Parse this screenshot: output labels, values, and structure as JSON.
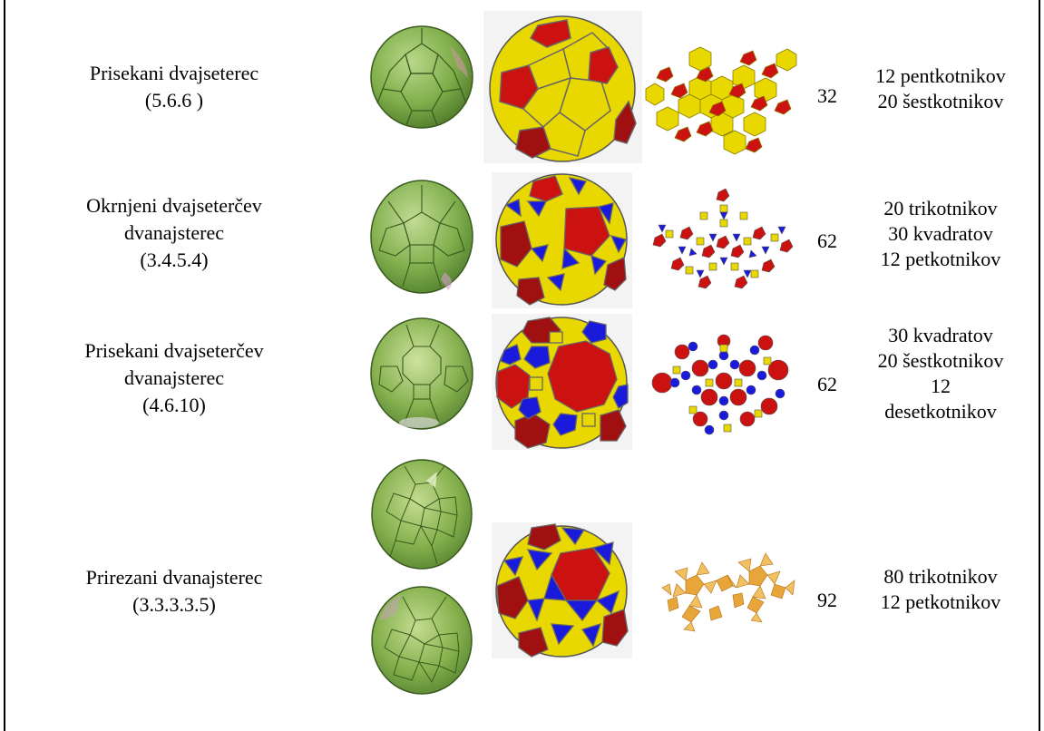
{
  "rows": [
    {
      "name_lines": [
        "Prisekani dvajseterec",
        "(5.6.6 )"
      ],
      "count": "32",
      "face_lines": [
        "12 pentkotnikov",
        "20 šestkotnikov"
      ]
    },
    {
      "name_lines": [
        "Okrnjeni dvajseterčev",
        "dvanajsterec",
        "(3.4.5.4)"
      ],
      "count": "62",
      "face_lines": [
        "20 trikotnikov",
        "30 kvadratov",
        "12 petkotnikov"
      ]
    },
    {
      "name_lines": [
        "Prisekani dvajseterčev",
        "dvanajsterec",
        "(4.6.10)"
      ],
      "count": "62",
      "face_lines": [
        "30 kvadratov",
        "20 šestkotnikov",
        "12",
        "desetkotnikov"
      ]
    },
    {
      "name_lines": [
        "Prirezani dvanajsterec",
        "(3.3.3.3.5)"
      ],
      "count": "92",
      "face_lines": [
        "80 trikotnikov",
        "12 petkotnikov"
      ]
    }
  ],
  "colors": {
    "face_yellow": "#e9d800",
    "face_red": "#cc1111",
    "face_blue": "#1a1adc",
    "glass_green": "#7fae4a",
    "net_orange": "#e8a63a"
  }
}
